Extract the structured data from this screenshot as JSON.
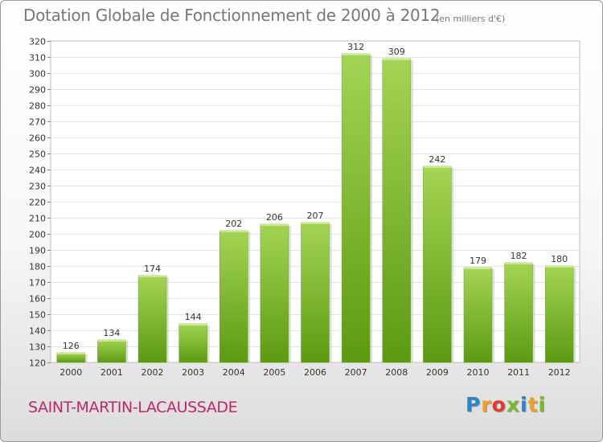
{
  "header": {
    "title": "Dotation Globale de Fonctionnement de 2000 à 2012",
    "subtitle": "(en milliers d'€)"
  },
  "footer": {
    "commune": "SAINT-MARTIN-LACAUSSADE",
    "logo": {
      "letters": [
        "P",
        "r",
        "o",
        "x",
        "i",
        "t",
        "i"
      ],
      "colors": [
        "#2a86c8",
        "#f0a020",
        "#e23a2a",
        "#7ab828",
        "#2a86c8",
        "#f0a020",
        "#7ab828"
      ]
    }
  },
  "chart_data": {
    "type": "bar",
    "title": "Dotation Globale de Fonctionnement de 2000 à 2012",
    "subtitle": "(en milliers d'€)",
    "categories": [
      "2000",
      "2001",
      "2002",
      "2003",
      "2004",
      "2005",
      "2006",
      "2007",
      "2008",
      "2009",
      "2010",
      "2011",
      "2012"
    ],
    "values": [
      126,
      134,
      174,
      144,
      202,
      206,
      207,
      312,
      309,
      242,
      179,
      182,
      180
    ],
    "data_labels": [
      "126",
      "134",
      "174",
      "144",
      "202",
      "206",
      "207",
      "312",
      "309",
      "242",
      "179",
      "182",
      "180"
    ],
    "xlabel": "",
    "ylabel": "",
    "ylim": [
      120,
      320
    ],
    "yticks": [
      120,
      130,
      140,
      150,
      160,
      170,
      180,
      190,
      200,
      210,
      220,
      230,
      240,
      250,
      260,
      270,
      280,
      290,
      300,
      310,
      320
    ],
    "grid": true,
    "legend": "none",
    "bar_color_top": "#a4d455",
    "bar_color_bottom": "#5c9a12"
  }
}
